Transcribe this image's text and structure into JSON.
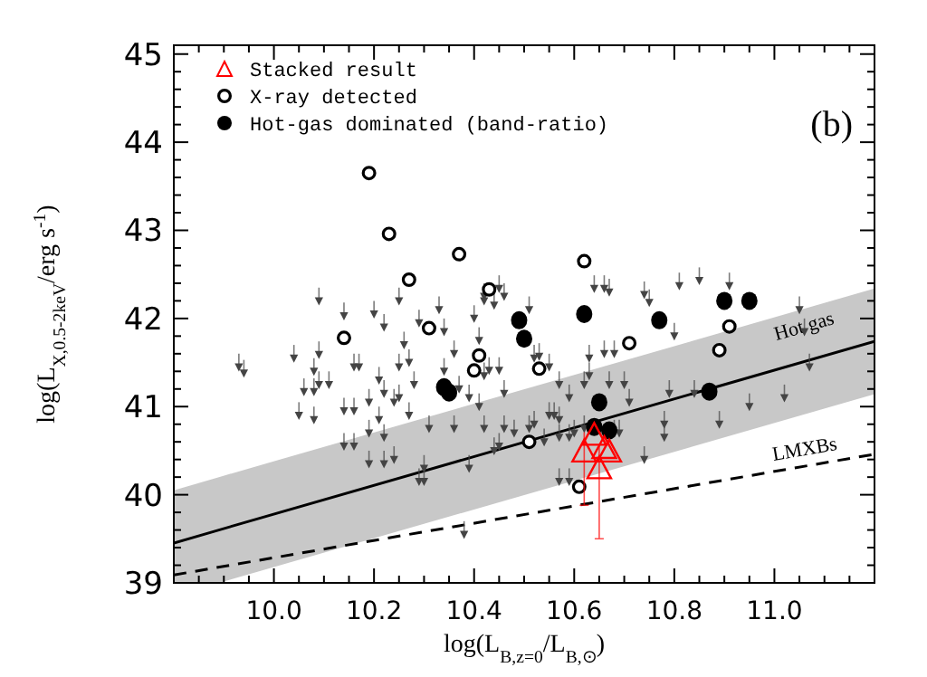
{
  "chart_data": {
    "type": "scatter",
    "xlabel": "log(L$_{B,z=0}$/L$_{B,⊙}$)",
    "ylabel": "log(L$_{X,0.5-2keV}$/erg s$^{-1}$)",
    "annotations": [
      "(b)"
    ],
    "xlim": [
      9.8,
      11.2
    ],
    "ylim": [
      39,
      45.1
    ],
    "xticks": [
      {
        "value": 9.8,
        "label": null
      },
      {
        "value": 9.85,
        "label": null
      },
      {
        "value": 9.9,
        "label": null
      },
      {
        "value": 9.95,
        "label": null
      },
      {
        "value": 10.0,
        "label": "10.0"
      },
      {
        "value": 10.05,
        "label": null
      },
      {
        "value": 10.1,
        "label": null
      },
      {
        "value": 10.15,
        "label": null
      },
      {
        "value": 10.2,
        "label": "10.2"
      },
      {
        "value": 10.25,
        "label": null
      },
      {
        "value": 10.3,
        "label": null
      },
      {
        "value": 10.35,
        "label": null
      },
      {
        "value": 10.4,
        "label": "10.4"
      },
      {
        "value": 10.45,
        "label": null
      },
      {
        "value": 10.5,
        "label": null
      },
      {
        "value": 10.55,
        "label": null
      },
      {
        "value": 10.6,
        "label": "10.6"
      },
      {
        "value": 10.65,
        "label": null
      },
      {
        "value": 10.7,
        "label": null
      },
      {
        "value": 10.75,
        "label": null
      },
      {
        "value": 10.8,
        "label": "10.8"
      },
      {
        "value": 10.85,
        "label": null
      },
      {
        "value": 10.9,
        "label": null
      },
      {
        "value": 10.95,
        "label": null
      },
      {
        "value": 11.0,
        "label": "11.0"
      },
      {
        "value": 11.05,
        "label": null
      },
      {
        "value": 11.1,
        "label": null
      },
      {
        "value": 11.15,
        "label": null
      }
    ],
    "yticks": [
      39,
      {
        "value": 39.2,
        "label": null
      },
      {
        "value": 39.4,
        "label": null
      },
      {
        "value": 39.6,
        "label": null
      },
      {
        "value": 39.8,
        "label": null
      },
      40,
      {
        "value": 40.2,
        "label": null
      },
      {
        "value": 40.4,
        "label": null
      },
      {
        "value": 40.6,
        "label": null
      },
      {
        "value": 40.8,
        "label": null
      },
      41,
      {
        "value": 41.2,
        "label": null
      },
      {
        "value": 41.4,
        "label": null
      },
      {
        "value": 41.6,
        "label": null
      },
      {
        "value": 41.8,
        "label": null
      },
      42,
      {
        "value": 42.2,
        "label": null
      },
      {
        "value": 42.4,
        "label": null
      },
      {
        "value": 42.6,
        "label": null
      },
      {
        "value": 42.8,
        "label": null
      },
      43,
      {
        "value": 43.2,
        "label": null
      },
      {
        "value": 43.4,
        "label": null
      },
      {
        "value": 43.6,
        "label": null
      },
      {
        "value": 43.8,
        "label": null
      },
      44,
      {
        "value": 44.2,
        "label": null
      },
      {
        "value": 44.4,
        "label": null
      },
      {
        "value": 44.6,
        "label": null
      },
      {
        "value": 44.8,
        "label": null
      },
      45
    ],
    "grid": false,
    "legend": "top left",
    "series": [
      {
        "type": "line",
        "name": "Hot gas",
        "color": "#000000",
        "line_style": "solid",
        "x": [
          9.8,
          9.89,
          11.2
        ],
        "values": [
          39.45,
          39.6,
          41.74
        ],
        "lower": [
          39,
          39,
          41.14
        ],
        "upper": [
          40.05,
          40.2,
          42.34
        ]
      },
      {
        "type": "line",
        "name": "LMXBs",
        "color": "#000000",
        "line_style": "dashed",
        "x": [
          9.8,
          11.2
        ],
        "values": [
          39.09,
          40.46
        ]
      },
      {
        "type": "scatter",
        "color": "#444444",
        "marker": "triangle",
        "x": [
          9.93,
          9.94,
          10.04,
          10.09,
          10.06,
          10.08,
          10.09,
          10.11,
          10.05,
          10.08,
          10.08,
          10.14,
          10.16,
          10.14,
          10.16,
          10.16,
          10.17,
          10.19,
          10.19,
          10.21,
          10.21,
          10.22,
          10.19,
          10.22,
          10.24,
          10.22,
          10.24,
          10.25,
          10.25,
          10.27,
          10.28,
          10.29,
          10.3,
          10.3,
          10.31,
          10.27,
          10.26,
          10.34,
          10.36,
          10.34,
          10.37,
          10.39,
          10.36,
          10.39,
          10.38,
          10.41,
          10.42,
          10.41,
          10.42,
          10.44,
          10.45,
          10.09,
          10.14,
          10.2,
          10.22,
          10.25,
          10.29,
          10.33,
          10.4,
          10.42,
          10.44,
          10.42,
          10.45,
          10.46,
          10.64,
          10.66,
          10.67,
          10.74,
          10.75,
          10.81,
          10.85,
          10.91,
          10.51,
          11.05,
          10.43,
          10.45,
          10.46,
          10.46,
          10.48,
          10.51,
          10.52,
          10.52,
          10.53,
          10.55,
          10.55,
          10.56,
          10.57,
          10.54,
          10.57,
          10.59,
          10.6,
          10.62,
          10.59,
          10.57,
          10.62,
          10.63,
          10.66,
          10.68,
          10.63,
          10.67,
          10.7,
          10.71,
          10.69,
          10.68,
          10.74,
          10.78,
          10.78,
          10.79,
          10.8,
          10.84,
          10.89,
          10.95,
          11.02,
          11.07,
          10.57,
          10.59,
          11.06
        ],
        "values": [
          41.45,
          41.38,
          41.55,
          41.59,
          41.17,
          41.17,
          41.25,
          41.25,
          40.9,
          40.85,
          41.4,
          40.95,
          40.95,
          40.55,
          40.55,
          41.45,
          41.45,
          41.05,
          40.7,
          41.3,
          40.85,
          40.65,
          40.35,
          40.35,
          40.4,
          41.15,
          41.05,
          41.45,
          41.1,
          41.5,
          41.25,
          40.15,
          40.15,
          40.3,
          40.75,
          40.9,
          41.7,
          41.85,
          41.6,
          41.4,
          41.2,
          41.1,
          40.75,
          40.3,
          39.55,
          41.0,
          40.75,
          41.75,
          41.35,
          40.5,
          40.55,
          42.2,
          42.03,
          42.05,
          41.9,
          42.2,
          41.95,
          42.1,
          42.0,
          42.25,
          42.15,
          42.2,
          42.34,
          42.25,
          42.34,
          42.34,
          42.3,
          42.27,
          42.18,
          42.37,
          42.43,
          42.37,
          42.1,
          42.1,
          41.41,
          41.41,
          41.15,
          40.75,
          40.7,
          40.75,
          40.8,
          41.55,
          41.57,
          41.45,
          40.9,
          40.9,
          40.85,
          40.6,
          40.65,
          40.65,
          40.7,
          40.75,
          41.1,
          41.25,
          41.25,
          41.35,
          41.6,
          41.6,
          41.55,
          41.25,
          41.25,
          41.05,
          40.7,
          40.7,
          40.4,
          40.8,
          40.65,
          41.15,
          41.8,
          41.15,
          40.8,
          41.0,
          41.1,
          41.45,
          40.15,
          40.15,
          41.85
        ],
        "errors": [
          [
            41.45,
            41.6
          ],
          [
            41.38,
            41.53
          ],
          [
            41.55,
            41.7
          ],
          [
            41.59,
            41.74
          ],
          [
            41.17,
            41.32
          ],
          [
            41.17,
            41.32
          ],
          [
            41.25,
            41.4
          ],
          [
            41.25,
            41.4
          ],
          [
            40.9,
            41.05
          ],
          [
            40.85,
            41.0
          ],
          [
            41.4,
            41.55
          ],
          [
            40.95,
            41.1
          ],
          [
            40.95,
            41.1
          ],
          [
            40.55,
            40.7
          ],
          [
            40.55,
            40.7
          ],
          [
            41.45,
            41.6
          ],
          [
            41.45,
            41.6
          ],
          [
            41.05,
            41.2
          ],
          [
            40.7,
            40.85
          ],
          [
            41.3,
            41.45
          ],
          [
            40.85,
            41.0
          ],
          [
            40.65,
            40.8
          ],
          [
            40.35,
            40.5
          ],
          [
            40.35,
            40.5
          ],
          [
            40.4,
            40.55
          ],
          [
            41.15,
            41.3
          ],
          [
            41.05,
            41.2
          ],
          [
            41.45,
            41.6
          ],
          [
            41.1,
            41.25
          ],
          [
            41.5,
            41.65
          ],
          [
            41.25,
            41.4
          ],
          [
            40.15,
            40.3
          ],
          [
            40.15,
            40.3
          ],
          [
            40.3,
            40.45
          ],
          [
            40.75,
            40.9
          ],
          [
            40.9,
            41.05
          ],
          [
            41.7,
            41.85
          ],
          [
            41.85,
            42.0
          ],
          [
            41.6,
            41.75
          ],
          [
            41.4,
            41.55
          ],
          [
            41.2,
            41.35
          ],
          [
            41.1,
            41.25
          ],
          [
            40.75,
            40.9
          ],
          [
            40.3,
            40.45
          ],
          [
            39.55,
            39.7
          ],
          [
            41.0,
            41.15
          ],
          [
            40.75,
            40.9
          ],
          [
            41.75,
            41.9
          ],
          [
            41.35,
            41.5
          ],
          [
            40.5,
            40.65
          ],
          [
            40.55,
            40.7
          ],
          [
            42.2,
            42.35
          ],
          [
            42.03,
            42.18
          ],
          [
            42.05,
            42.2
          ],
          [
            41.9,
            42.05
          ],
          [
            42.2,
            42.35
          ],
          [
            41.95,
            42.1
          ],
          [
            42.1,
            42.25
          ],
          [
            42.0,
            42.15
          ],
          [
            42.25,
            42.4
          ],
          [
            42.15,
            42.3
          ],
          [
            42.2,
            42.35
          ],
          [
            42.34,
            42.49
          ],
          [
            42.25,
            42.4
          ],
          [
            42.34,
            42.49
          ],
          [
            42.34,
            42.49
          ],
          [
            42.3,
            42.45
          ],
          [
            42.27,
            42.42
          ],
          [
            42.18,
            42.33
          ],
          [
            42.37,
            42.52
          ],
          [
            42.43,
            42.58
          ],
          [
            42.37,
            42.52
          ],
          [
            42.1,
            42.25
          ],
          [
            42.1,
            42.25
          ],
          [
            41.41,
            41.56
          ],
          [
            41.41,
            41.56
          ],
          [
            41.15,
            41.3
          ],
          [
            40.75,
            40.9
          ],
          [
            40.7,
            40.85
          ],
          [
            40.75,
            40.9
          ],
          [
            40.8,
            40.95
          ],
          [
            41.55,
            41.7
          ],
          [
            41.57,
            41.72
          ],
          [
            41.45,
            41.6
          ],
          [
            40.9,
            41.05
          ],
          [
            40.9,
            41.05
          ],
          [
            40.85,
            41.0
          ],
          [
            40.6,
            40.75
          ],
          [
            40.65,
            40.8
          ],
          [
            40.65,
            40.8
          ],
          [
            40.7,
            40.85
          ],
          [
            40.75,
            40.9
          ],
          [
            41.1,
            41.25
          ],
          [
            41.25,
            41.4
          ],
          [
            41.25,
            41.4
          ],
          [
            41.35,
            41.5
          ],
          [
            41.6,
            41.75
          ],
          [
            41.6,
            41.75
          ],
          [
            41.55,
            41.7
          ],
          [
            41.25,
            41.4
          ],
          [
            41.25,
            41.4
          ],
          [
            41.05,
            41.2
          ],
          [
            40.7,
            40.85
          ],
          [
            40.7,
            40.85
          ],
          [
            40.4,
            40.55
          ],
          [
            40.8,
            40.95
          ],
          [
            40.65,
            40.8
          ],
          [
            41.15,
            41.3
          ],
          [
            41.8,
            41.95
          ],
          [
            41.15,
            41.3
          ],
          [
            40.8,
            40.95
          ],
          [
            41.0,
            41.15
          ],
          [
            41.1,
            41.25
          ],
          [
            41.45,
            41.6
          ],
          [
            40.15,
            40.3
          ],
          [
            40.15,
            40.3
          ],
          [
            41.85,
            42.0
          ]
        ]
      },
      {
        "type": "scatter",
        "name": "Hot-gas dominated (band-ratio)",
        "color": "#000000",
        "marker": "circle",
        "x": [
          10.49,
          10.5,
          10.34,
          10.35,
          10.62,
          10.77,
          10.9,
          10.95,
          10.65,
          10.64,
          10.67,
          10.87
        ],
        "values": [
          41.98,
          41.77,
          41.22,
          41.16,
          42.05,
          41.98,
          42.2,
          42.2,
          41.05,
          40.77,
          40.73,
          41.17
        ]
      },
      {
        "type": "scatter",
        "name": "X-ray detected",
        "color": "#000000",
        "marker": "circle-open",
        "x": [
          10.19,
          10.23,
          10.27,
          10.37,
          10.43,
          10.14,
          10.31,
          10.41,
          10.4,
          10.62,
          10.91,
          10.71,
          10.89,
          10.53,
          10.51,
          10.61
        ],
        "values": [
          43.65,
          42.96,
          42.44,
          42.73,
          42.33,
          41.78,
          41.89,
          41.58,
          41.41,
          42.65,
          41.91,
          41.72,
          41.64,
          41.43,
          40.6,
          40.09
        ]
      },
      {
        "type": "scatter",
        "name": "Stacked result",
        "color": "#ff0000",
        "marker": "triangle-open",
        "x": [
          10.64,
          10.66,
          10.62,
          10.67,
          10.65
        ],
        "values": [
          40.65,
          40.5,
          40.46,
          40.46,
          40.27
        ],
        "errors": [
          null,
          null,
          [
            39.88,
            40.71
          ],
          null,
          [
            39.5,
            40.57
          ]
        ]
      }
    ]
  }
}
